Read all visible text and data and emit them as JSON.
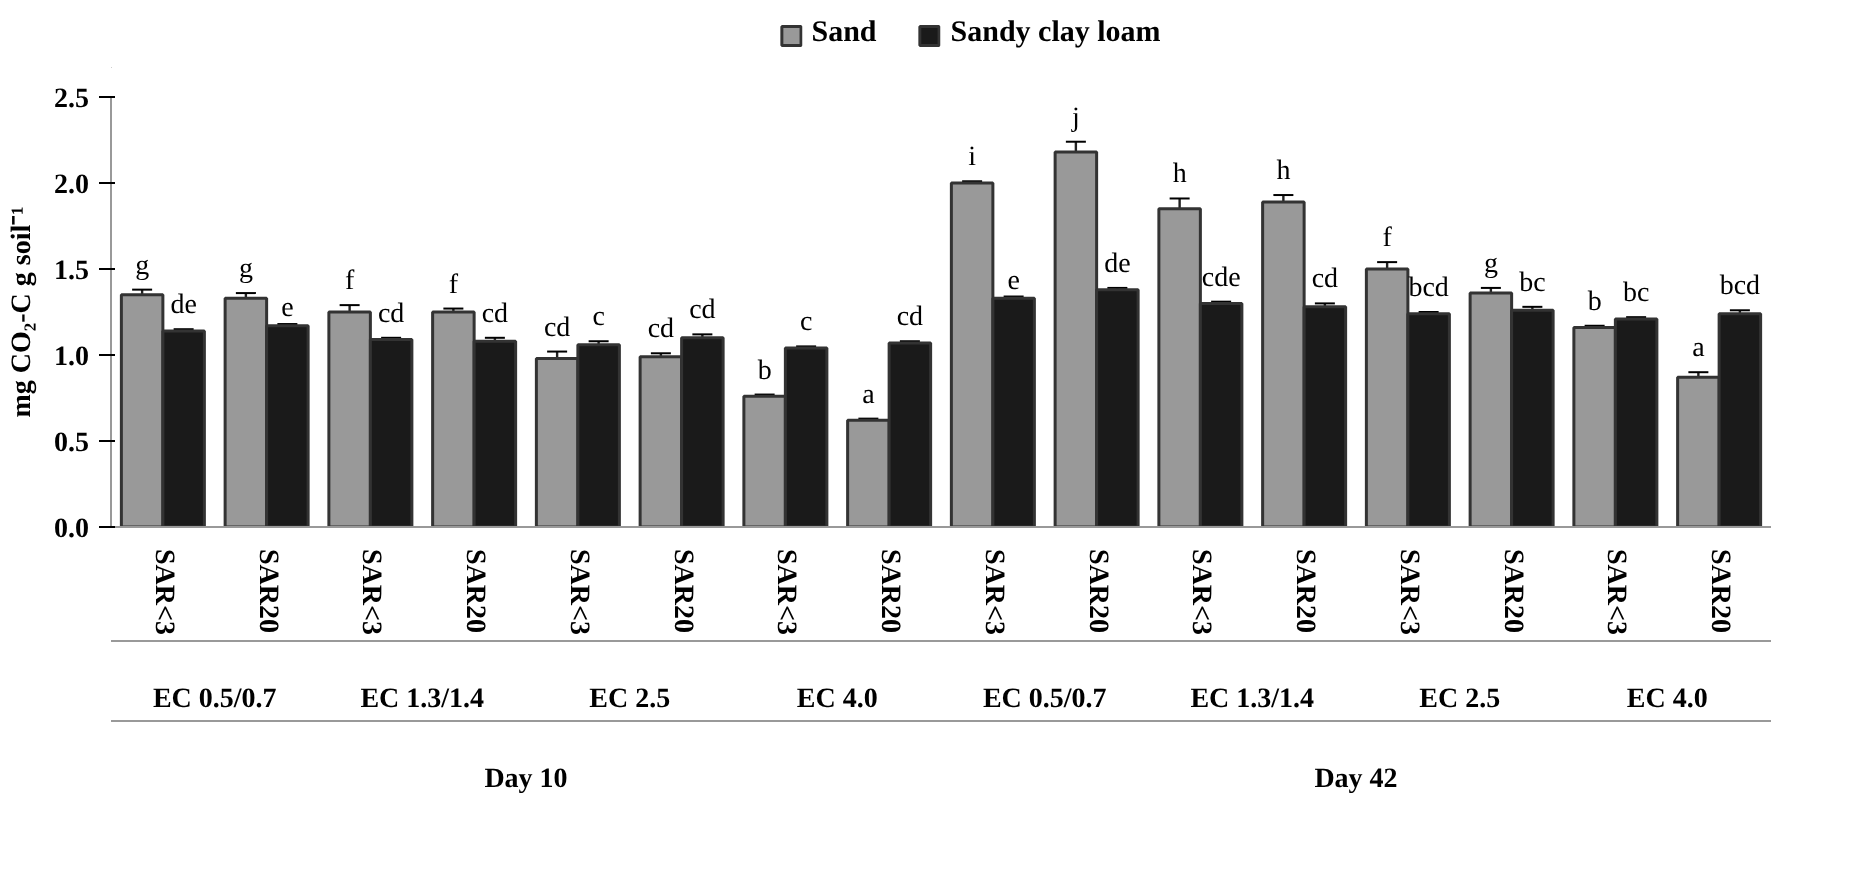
{
  "chart_data": {
    "type": "bar",
    "ylabel": "mg CO₂-C g soil⁻¹",
    "categories": [
      "SAR<3",
      "SAR20",
      "SAR<3",
      "SAR20",
      "SAR<3",
      "SAR20",
      "SAR<3",
      "SAR20",
      "SAR<3",
      "SAR20",
      "SAR<3",
      "SAR20",
      "SAR<3",
      "SAR20",
      "SAR<3",
      "SAR20"
    ],
    "annotations": [
      "EC 0.5/0.7",
      "EC 1.3/1.4",
      "EC 2.5",
      "EC 4.0",
      "EC 0.5/0.7",
      "EC 1.3/1.4",
      "EC 2.5",
      "EC 4.0",
      "Day 10",
      "Day 42"
    ],
    "series": [
      {
        "name": "Sand",
        "color": "#999999",
        "values": [
          1.35,
          1.33,
          1.25,
          1.25,
          0.98,
          0.99,
          0.76,
          0.62,
          2.0,
          2.18,
          1.85,
          1.89,
          1.5,
          1.36,
          1.16,
          0.87
        ],
        "errors": [
          0.03,
          0.03,
          0.04,
          0.02,
          0.04,
          0.02,
          0.01,
          0.01,
          0.01,
          0.06,
          0.06,
          0.04,
          0.04,
          0.03,
          0.01,
          0.03
        ],
        "value_labels": [
          "g",
          "g",
          "f",
          "f",
          "cd",
          "cd",
          "b",
          "a",
          "i",
          "j",
          "h",
          "h",
          "f",
          "g",
          "b",
          "a"
        ]
      },
      {
        "name": "Sandy clay loam",
        "color": "#1a1a1a",
        "values": [
          1.14,
          1.17,
          1.09,
          1.08,
          1.06,
          1.1,
          1.04,
          1.07,
          1.33,
          1.38,
          1.3,
          1.28,
          1.24,
          1.26,
          1.21,
          1.24
        ],
        "errors": [
          0.01,
          0.01,
          0.01,
          0.02,
          0.02,
          0.02,
          0.01,
          0.01,
          0.01,
          0.01,
          0.01,
          0.02,
          0.01,
          0.02,
          0.01,
          0.02
        ],
        "value_labels": [
          "de",
          "e",
          "cd",
          "cd",
          "c",
          "cd",
          "c",
          "cd",
          "e",
          "de",
          "cde",
          "cd",
          "bcd",
          "bc",
          "bc",
          "bcd"
        ]
      }
    ],
    "ylim": [
      0,
      2.5
    ],
    "yticks": [
      {
        "value": 0,
        "label": "0.0"
      },
      {
        "value": 0.5,
        "label": "0.5"
      },
      {
        "value": 1,
        "label": "1.0"
      },
      {
        "value": 1.5,
        "label": "1.5"
      },
      {
        "value": 2,
        "label": "2.0"
      },
      {
        "value": 2.5,
        "label": "2.5"
      }
    ],
    "grid": false,
    "legend": "top"
  }
}
